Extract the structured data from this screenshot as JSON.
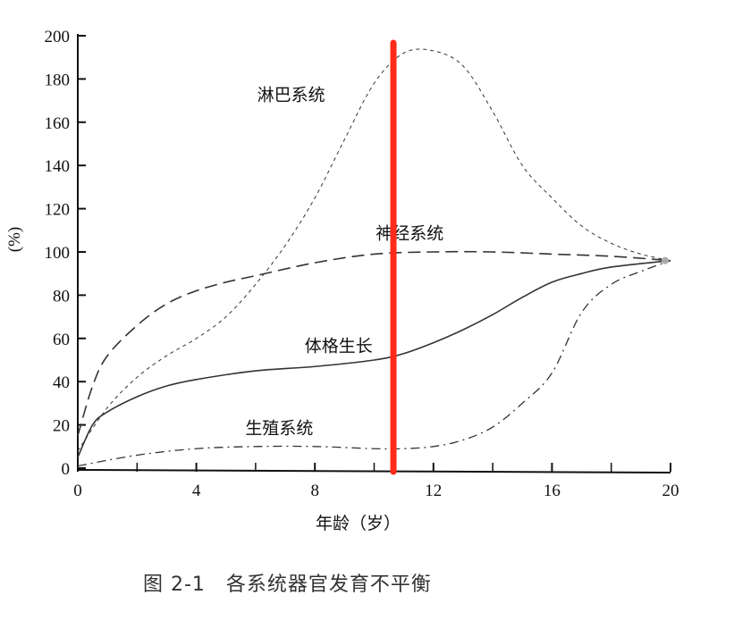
{
  "caption": "图 2-1　各系统器官发育不平衡",
  "chart_data": {
    "type": "line",
    "title": "",
    "xlabel": "年龄（岁）",
    "ylabel": "(%)",
    "xlim": [
      0,
      20
    ],
    "ylim": [
      0,
      200
    ],
    "x_ticks": [
      0,
      4,
      8,
      12,
      16,
      20
    ],
    "x_minor_ticks": [
      2,
      6,
      10,
      14,
      18
    ],
    "y_ticks": [
      0,
      20,
      40,
      60,
      80,
      100,
      120,
      140,
      160,
      180,
      200
    ],
    "grid": false,
    "legend": "none (inline curve labels)",
    "series": [
      {
        "name": "淋巴系统",
        "style": "short-dash",
        "label_pos": [
          7.2,
          170
        ],
        "x": [
          0,
          1,
          2,
          3,
          4,
          5,
          6,
          7,
          8,
          9,
          10,
          11,
          12,
          13,
          14,
          15,
          16,
          17,
          18,
          19,
          20
        ],
        "y": [
          8,
          28,
          42,
          52,
          60,
          70,
          85,
          103,
          125,
          152,
          178,
          192,
          193,
          186,
          165,
          140,
          125,
          112,
          104,
          99,
          96
        ]
      },
      {
        "name": "神经系统",
        "style": "long-dash",
        "label_pos": [
          11.2,
          106
        ],
        "x": [
          0,
          0.5,
          1,
          2,
          3,
          4,
          5,
          6,
          8,
          10,
          12,
          14,
          16,
          18,
          20
        ],
        "y": [
          15,
          38,
          52,
          66,
          76,
          82,
          86,
          89,
          95,
          99,
          100,
          100,
          99,
          98,
          96
        ]
      },
      {
        "name": "体格生长",
        "style": "solid",
        "label_pos": [
          8.8,
          54
        ],
        "x": [
          0,
          0.5,
          1,
          2,
          3,
          4,
          6,
          8,
          10,
          11,
          12,
          13,
          14,
          15,
          16,
          17,
          18,
          20
        ],
        "y": [
          5,
          20,
          26,
          33,
          38,
          41,
          45,
          47,
          50,
          53,
          58,
          64,
          71,
          79,
          86,
          90,
          93,
          96
        ]
      },
      {
        "name": "生殖系统",
        "style": "dash-dot",
        "label_pos": [
          6.8,
          16
        ],
        "x": [
          0,
          2,
          4,
          6,
          8,
          10,
          11,
          12,
          13,
          14,
          15,
          16,
          17,
          18,
          19,
          20
        ],
        "y": [
          1,
          6,
          9,
          10,
          10,
          9,
          9,
          10,
          13,
          19,
          30,
          44,
          72,
          85,
          91,
          96
        ]
      }
    ],
    "annotations": [
      {
        "type": "vertical-line",
        "x": 10.65,
        "color": "#ff2a1a"
      }
    ]
  }
}
